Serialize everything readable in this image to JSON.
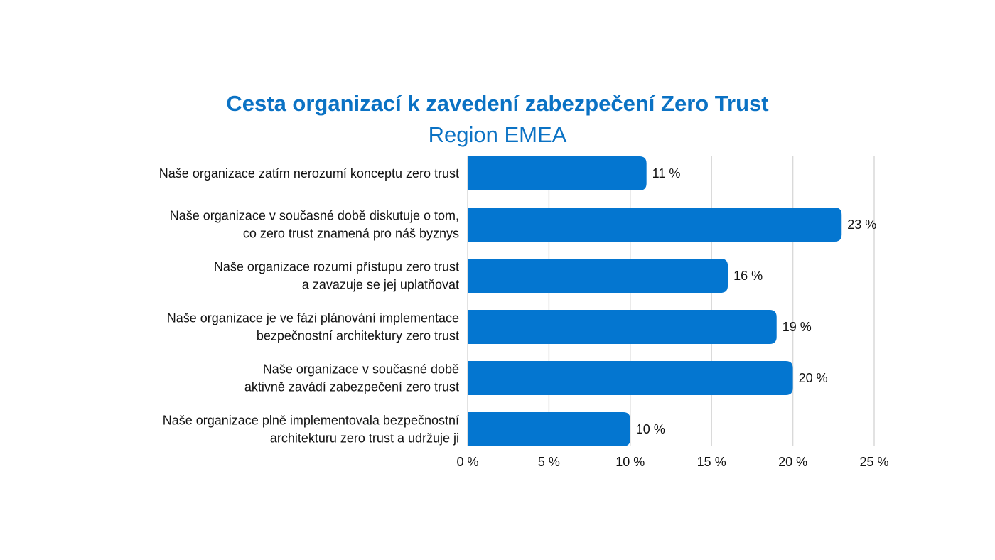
{
  "chart_data": {
    "type": "bar",
    "orientation": "horizontal",
    "title": "Cesta organizací k zavedení zabezpečení Zero Trust",
    "subtitle": "Region EMEA",
    "categories": [
      [
        "Naše organizace zatím nerozumí konceptu zero trust"
      ],
      [
        "Naše organizace v současné době diskutuje o tom,",
        "co zero trust znamená pro náš byznys"
      ],
      [
        "Naše organizace rozumí přístupu zero trust",
        "a zavazuje se jej uplatňovat"
      ],
      [
        "Naše organizace je ve fázi plánování implementace",
        "bezpečnostní architektury zero trust"
      ],
      [
        "Naše organizace v současné době",
        "aktivně zavádí zabezpečení zero trust"
      ],
      [
        "Naše organizace plně implementovala bezpečnostní",
        "architekturu zero trust a udržuje ji"
      ]
    ],
    "values": [
      11,
      23,
      16,
      19,
      20,
      10
    ],
    "value_labels": [
      "11 %",
      "23 %",
      "16 %",
      "19 %",
      "20 %",
      "10 %"
    ],
    "xlim": [
      0,
      25
    ],
    "x_ticks": [
      0,
      5,
      10,
      15,
      20,
      25
    ],
    "x_tick_labels": [
      "0 %",
      "5 %",
      "10 %",
      "15 %",
      "20 %",
      "25 %"
    ],
    "grid": true,
    "legend": "none",
    "bar_color": "#0476d0",
    "title_color": "#0b72c4",
    "grid_color": "#d9d9d9"
  }
}
